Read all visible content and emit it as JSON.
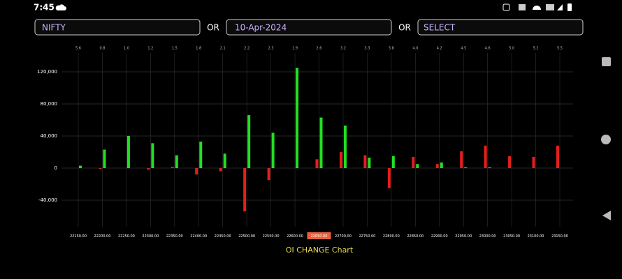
{
  "status_bar": {
    "time": "7:45"
  },
  "controls": {
    "symbol": "NIFTY",
    "or_1": "OR",
    "date": "10-Apr-2024",
    "or_2": "OR",
    "expiry": "SELECT"
  },
  "chart_data": {
    "type": "bar",
    "title": "OI CHANGE Chart",
    "categories": [
      "22150.00",
      "22200.00",
      "22250.00",
      "22300.00",
      "22350.00",
      "22400.00",
      "22450.00",
      "22500.00",
      "22550.00",
      "22600.00",
      "22650.00",
      "22700.00",
      "22750.00",
      "22800.00",
      "22850.00",
      "22900.00",
      "22950.00",
      "23000.00",
      "23050.00",
      "23100.00",
      "23150.00"
    ],
    "top_labels": [
      "5.6",
      "0.8",
      "1.0",
      "1.2",
      "1.5",
      "1.8",
      "2.1",
      "2.2",
      "2.3",
      "1.9",
      "2.6",
      "3.2",
      "3.3",
      "3.8",
      "4.0",
      "4.2",
      "4.5",
      "4.6",
      "5.0",
      "5.2",
      "5.5"
    ],
    "highlight_category": 10,
    "series": [
      {
        "color": "#e3201b",
        "values": [
          0,
          -1000,
          0,
          -2000,
          1500,
          -8000,
          -4000,
          -54000,
          -15000,
          0,
          11000,
          20000,
          16000,
          -25000,
          14000,
          5000,
          21000,
          28000,
          15000,
          14000,
          28000
        ]
      },
      {
        "color": "#22e022",
        "values": [
          3000,
          23000,
          40000,
          31000,
          16000,
          33000,
          18000,
          66000,
          44000,
          125000,
          63000,
          53000,
          13000,
          15000,
          5000,
          7000,
          1000,
          1000,
          0,
          0,
          0
        ]
      }
    ],
    "ylim": [
      -70000,
      140000
    ],
    "yticks": [
      {
        "value": -40000,
        "label": "-40,000"
      },
      0,
      {
        "value": 40000,
        "label": "40,000"
      },
      {
        "value": 80000,
        "label": "80,000"
      },
      {
        "value": 120000,
        "label": "120,000"
      }
    ],
    "grid": true
  }
}
